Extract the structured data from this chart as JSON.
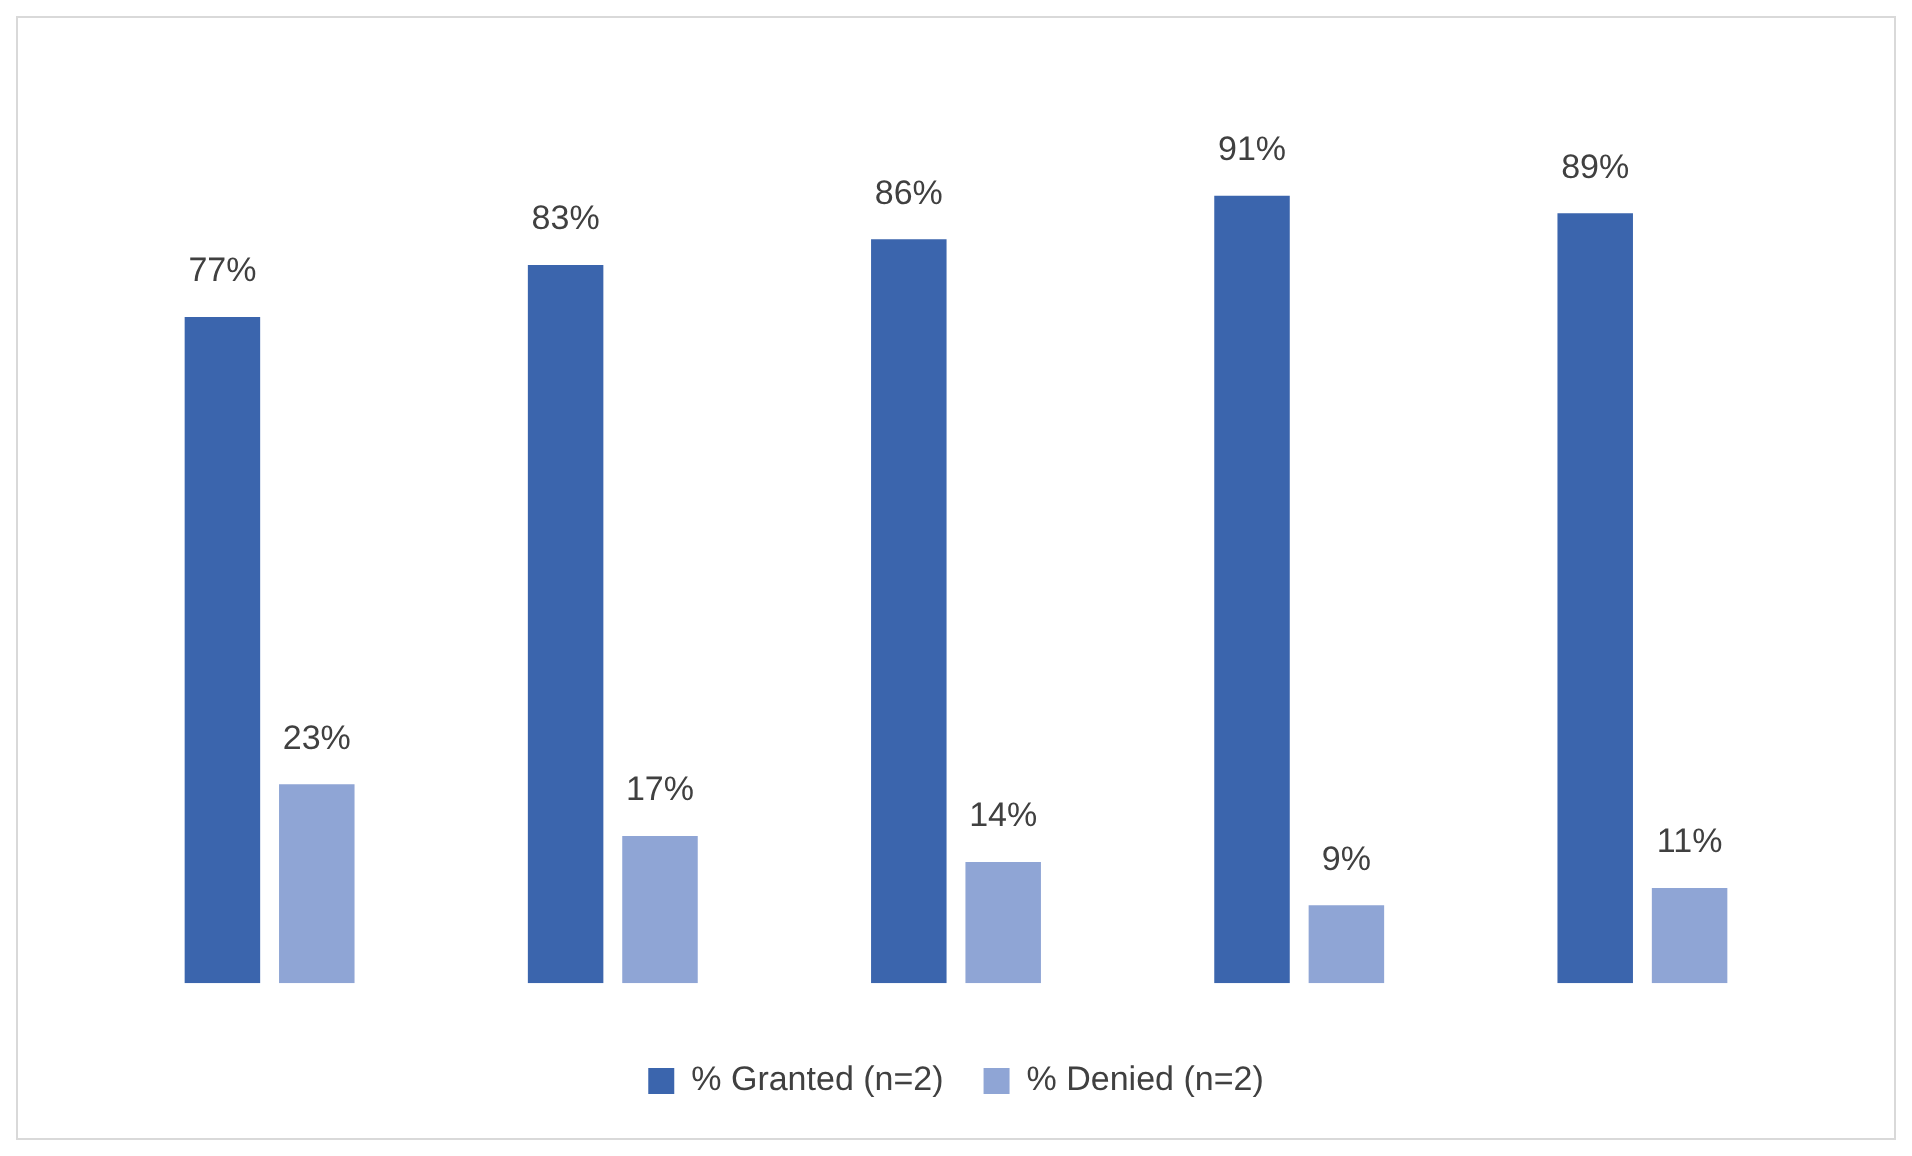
{
  "chart_data": {
    "type": "bar",
    "categories": [
      null,
      null,
      null,
      null,
      null
    ],
    "legend": "bottom",
    "grid": false,
    "series": [
      {
        "name": "% Granted (n=2)",
        "color": "#3b65ad",
        "values": [
          77,
          83,
          86,
          91,
          89
        ],
        "value_labels": [
          "77%",
          "83%",
          "86%",
          "91%",
          "89%"
        ]
      },
      {
        "name": "% Denied (n=2)",
        "color": "#8fa5d5",
        "values": [
          23,
          17,
          14,
          9,
          11
        ],
        "value_labels": [
          "23%",
          "17%",
          "14%",
          "9%",
          "11%"
        ]
      }
    ]
  }
}
